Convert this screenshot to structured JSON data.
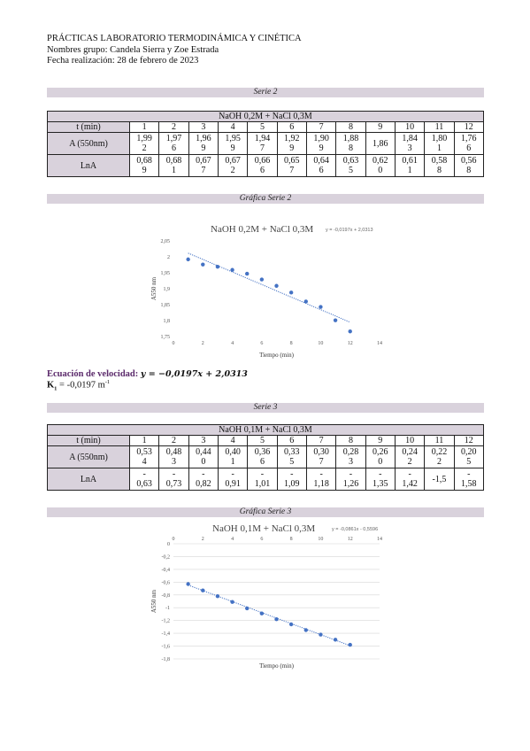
{
  "header": {
    "title": "PRÁCTICAS LABORATORIO TERMODINÁMICA Y CINÉTICA",
    "group": "Nombres grupo: Candela Sierra y Zoe Estrada",
    "date": "Fecha realización: 28 de febrero de 2023"
  },
  "serie2": {
    "band": "Serie 2",
    "caption": "NaOH 0,2M + NaCl 0,3M",
    "row_labels": [
      "t (min)",
      "A (550nm)",
      "LnA"
    ],
    "t": [
      "1",
      "2",
      "3",
      "4",
      "5",
      "6",
      "7",
      "8",
      "9",
      "10",
      "11",
      "12"
    ],
    "A": [
      [
        "1,99",
        "2"
      ],
      [
        "1,97",
        "6"
      ],
      [
        "1,96",
        "9"
      ],
      [
        "1,95",
        "9"
      ],
      [
        "1,94",
        "7"
      ],
      [
        "1,92",
        "9"
      ],
      [
        "1,90",
        "9"
      ],
      [
        "1,88",
        "8"
      ],
      [
        "1,86",
        ""
      ],
      [
        "1,84",
        "3"
      ],
      [
        "1,80",
        "1"
      ],
      [
        "1,76",
        "6"
      ]
    ],
    "LnA": [
      [
        "0,68",
        "9"
      ],
      [
        "0,68",
        "1"
      ],
      [
        "0,67",
        "7"
      ],
      [
        "0,67",
        "2"
      ],
      [
        "0,66",
        "6"
      ],
      [
        "0,65",
        "7"
      ],
      [
        "0,64",
        "6"
      ],
      [
        "0,63",
        "5"
      ],
      [
        "0,62",
        "0"
      ],
      [
        "0,61",
        "1"
      ],
      [
        "0,58",
        "8"
      ],
      [
        "0,56",
        "8"
      ]
    ]
  },
  "grafica2": {
    "band": "Gráfica Serie 2",
    "chart_data": {
      "type": "scatter",
      "title": "NaOH 0,2M + NaCl 0,3M",
      "trendline_label": "y = -0,0197x + 2,0313",
      "xlabel": "Tiempo (min)",
      "ylabel": "A550 nm",
      "x_ticks": [
        "0",
        "2",
        "4",
        "6",
        "8",
        "10",
        "12",
        "14"
      ],
      "y_ticks": [
        "2,05",
        "2",
        "1,95",
        "1,9",
        "1,85",
        "1,8",
        "1,75"
      ],
      "xlim": [
        0,
        14
      ],
      "ylim": [
        1.75,
        2.05
      ],
      "x": [
        1,
        2,
        3,
        4,
        5,
        6,
        7,
        8,
        9,
        10,
        11,
        12
      ],
      "y": [
        1.992,
        1.976,
        1.969,
        1.959,
        1.947,
        1.929,
        1.909,
        1.888,
        1.86,
        1.843,
        1.801,
        1.766
      ],
      "trend": {
        "slope": -0.0197,
        "intercept": 2.0313
      },
      "color": "#4472c4"
    }
  },
  "ecuacion2": {
    "label": "Ecuación de velocidad:",
    "formula": "y = −0,0197x + 2,0313",
    "k_label": "K",
    "k_sub": "1",
    "k_value": " = -0,0197 m",
    "k_sup": "-1"
  },
  "serie3": {
    "band": "Serie 3",
    "caption": "NaOH 0,1M + NaCl 0,3M",
    "row_labels": [
      "t (min)",
      "A (550nm)",
      "LnA"
    ],
    "t": [
      "1",
      "2",
      "3",
      "4",
      "5",
      "6",
      "7",
      "8",
      "9",
      "10",
      "11",
      "12"
    ],
    "A": [
      [
        "0,53",
        "4"
      ],
      [
        "0,48",
        "3"
      ],
      [
        "0,44",
        "0"
      ],
      [
        "0,40",
        "1"
      ],
      [
        "0,36",
        "6"
      ],
      [
        "0,33",
        "5"
      ],
      [
        "0,30",
        "7"
      ],
      [
        "0,28",
        "3"
      ],
      [
        "0,26",
        "0"
      ],
      [
        "0,24",
        "2"
      ],
      [
        "0,22",
        "2"
      ],
      [
        "0,20",
        "5"
      ]
    ],
    "LnA": [
      [
        "-",
        "0,63"
      ],
      [
        "-",
        "0,73"
      ],
      [
        "-",
        "0,82"
      ],
      [
        "-",
        "0,91"
      ],
      [
        "-",
        "1,01"
      ],
      [
        "-",
        "1,09"
      ],
      [
        "-",
        "1,18"
      ],
      [
        "-",
        "1,26"
      ],
      [
        "-",
        "1,35"
      ],
      [
        "-",
        "1,42"
      ],
      [
        "",
        "-1,5"
      ],
      [
        "-",
        "1,58"
      ]
    ]
  },
  "grafica3": {
    "band": "Gráfica Serie 3",
    "chart_data": {
      "type": "scatter",
      "title": "NaOH 0,1M + NaCl 0,3M",
      "trendline_label": "y = -0,0861x - 0,5596",
      "xlabel": "Tiempo (min)",
      "ylabel": "A550 nm",
      "x_ticks": [
        "0",
        "2",
        "4",
        "6",
        "8",
        "10",
        "12",
        "14"
      ],
      "y_ticks": [
        "0",
        "-0,2",
        "-0,4",
        "-0,6",
        "-0,8",
        "-1",
        "-1,2",
        "-1,4",
        "-1,6",
        "-1,8"
      ],
      "xlim": [
        0,
        14
      ],
      "ylim": [
        -1.8,
        0
      ],
      "x": [
        1,
        2,
        3,
        4,
        5,
        6,
        7,
        8,
        9,
        10,
        11,
        12
      ],
      "y": [
        -0.63,
        -0.73,
        -0.82,
        -0.91,
        -1.01,
        -1.09,
        -1.18,
        -1.26,
        -1.35,
        -1.42,
        -1.5,
        -1.58
      ],
      "trend": {
        "slope": -0.0861,
        "intercept": -0.5596
      },
      "color": "#4472c4"
    }
  }
}
